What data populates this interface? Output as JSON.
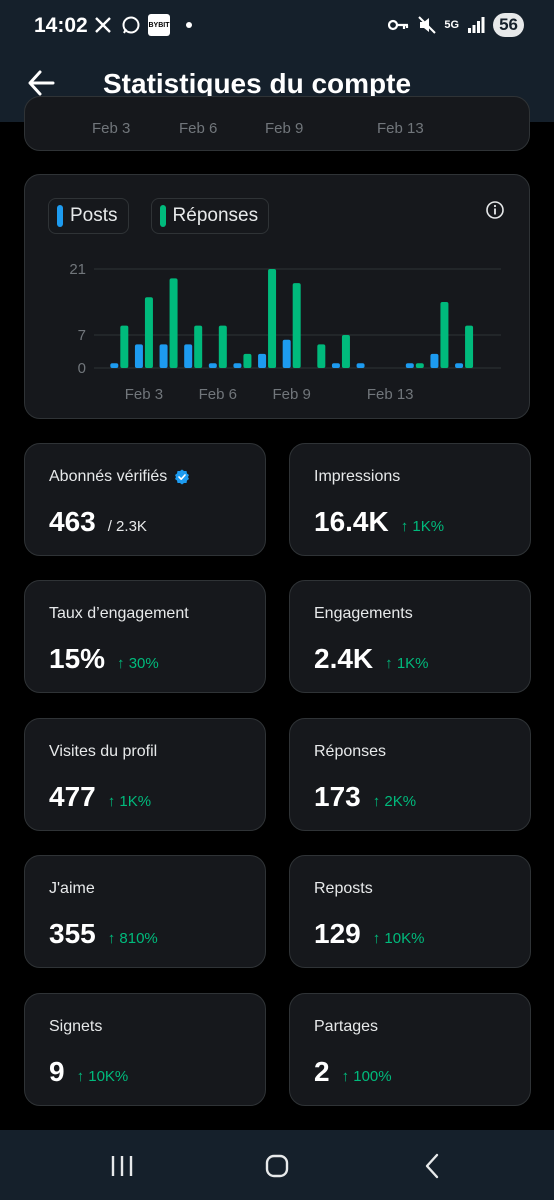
{
  "status_bar": {
    "time": "14:02",
    "left_icons": [
      "x-logo-icon",
      "whatsapp-icon",
      "bybit-icon"
    ],
    "bybit_label": "BYBIT",
    "network": "5G",
    "battery": "56"
  },
  "header": {
    "title": "Statistiques du compte"
  },
  "top_chart": {
    "ticks": [
      "Feb 3",
      "Feb 6",
      "Feb 9",
      "Feb 13"
    ]
  },
  "legend": {
    "posts": "Posts",
    "replies": "Réponses"
  },
  "colors": {
    "posts": "#1d9bf0",
    "replies": "#00ba7c",
    "up": "#00ba7c",
    "bg": "#000000",
    "card": "#16181c"
  },
  "chart_data": {
    "type": "bar",
    "x": [
      "Feb 2",
      "Feb 3",
      "Feb 4",
      "Feb 5",
      "Feb 6",
      "Feb 7",
      "Feb 8",
      "Feb 9",
      "Feb 10",
      "Feb 11",
      "Feb 12",
      "Feb 13",
      "Feb 14",
      "Feb 15",
      "Feb 16",
      "Feb 17"
    ],
    "x_tick_labels": [
      "Feb 3",
      "Feb 6",
      "Feb 9",
      "Feb 13"
    ],
    "y_ticks": [
      0,
      7,
      21
    ],
    "ylim": [
      0,
      21
    ],
    "series": [
      {
        "name": "Posts",
        "values": [
          1,
          5,
          5,
          5,
          1,
          1,
          3,
          6,
          0,
          1,
          1,
          0,
          1,
          3,
          1,
          0
        ]
      },
      {
        "name": "Réponses",
        "values": [
          9,
          15,
          19,
          9,
          9,
          3,
          21,
          18,
          5,
          7,
          0,
          0,
          1,
          14,
          9,
          0
        ]
      }
    ],
    "grid": true,
    "legend_position": "top-left"
  },
  "stats": [
    {
      "label": "Abonnés vérifiés",
      "value": "463",
      "sub": "/ 2.3K",
      "change": "",
      "verified": true
    },
    {
      "label": "Impressions",
      "value": "16.4K",
      "sub": "",
      "change": "↑ 1K%"
    },
    {
      "label": "Taux d’engagement",
      "value": "15%",
      "sub": "",
      "change": "↑ 30%"
    },
    {
      "label": "Engagements",
      "value": "2.4K",
      "sub": "",
      "change": "↑ 1K%"
    },
    {
      "label": "Visites du profil",
      "value": "477",
      "sub": "",
      "change": "↑ 1K%"
    },
    {
      "label": "Réponses",
      "value": "173",
      "sub": "",
      "change": "↑ 2K%"
    },
    {
      "label": "J'aime",
      "value": "355",
      "sub": "",
      "change": "↑ 810%"
    },
    {
      "label": "Reposts",
      "value": "129",
      "sub": "",
      "change": "↑ 10K%"
    },
    {
      "label": "Signets",
      "value": "9",
      "sub": "",
      "change": "↑ 10K%"
    },
    {
      "label": "Partages",
      "value": "2",
      "sub": "",
      "change": "↑ 100%"
    }
  ],
  "nav": [
    "recent-apps-icon",
    "home-icon",
    "back-icon"
  ]
}
